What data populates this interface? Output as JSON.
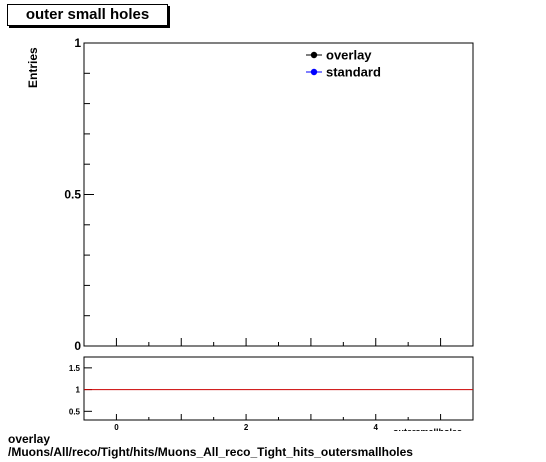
{
  "chart_data": [
    {
      "type": "line",
      "title": "outer small holes",
      "ylabel": "Entries",
      "xlabel": "outersmallholes",
      "xlim": [
        -0.5,
        5.5
      ],
      "ylim": [
        0,
        1
      ],
      "y_ticks": [
        0,
        0.5,
        1
      ],
      "y_tick_labels": [
        "0",
        "0.5",
        "1"
      ],
      "legend_position": "top-right",
      "series": [
        {
          "name": "overlay",
          "color": "#000000",
          "points": []
        },
        {
          "name": "standard",
          "color": "#0000ff",
          "points": []
        }
      ]
    },
    {
      "type": "line",
      "xlim": [
        -0.5,
        5.5
      ],
      "ylim": [
        0.3,
        1.75
      ],
      "x_ticks": [
        0,
        2,
        4
      ],
      "x_tick_labels": [
        "0",
        "2",
        "4"
      ],
      "y_ticks": [
        0.5,
        1,
        1.5
      ],
      "y_tick_labels": [
        "0.5",
        "1",
        "1.5"
      ],
      "reference_line": {
        "y": 1,
        "color": "#cc0000"
      }
    }
  ],
  "footer": {
    "line1": "overlay",
    "line2": "/Muons/All/reco/Tight/hits/Muons_All_reco_Tight_hits_outersmallholes"
  }
}
